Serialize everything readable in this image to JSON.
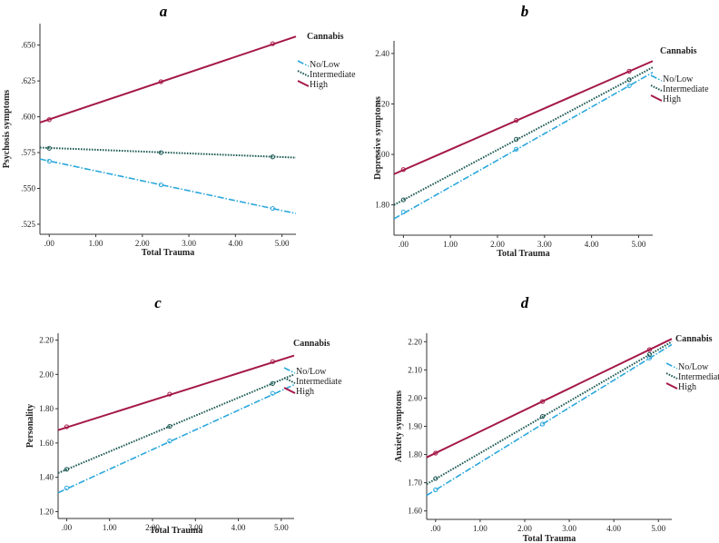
{
  "colors": {
    "nolow": "#2aa7dc",
    "intermediate": "#1d5a54",
    "high": "#a41848",
    "axis": "#333333"
  },
  "chart_data": [
    {
      "type": "line",
      "panel": "a",
      "xlabel": "Total Trauma",
      "ylabel": "Psychosis symptoms",
      "xticks": [
        ".00",
        "1.00",
        "2.00",
        "3.00",
        "4.00",
        "5.00"
      ],
      "xtick_values": [
        0,
        1,
        2,
        3,
        4,
        5
      ],
      "yticks": [
        ".525",
        ".550",
        ".575",
        ".600",
        ".625",
        ".650"
      ],
      "ytick_values": [
        0.525,
        0.55,
        0.575,
        0.6,
        0.625,
        0.65
      ],
      "xlim": [
        -0.2,
        5.3
      ],
      "ylim": [
        0.518,
        0.665
      ],
      "legend_title": "Cannabis",
      "legend_position": "right",
      "series": [
        {
          "name": "No/Low",
          "style": "nolow",
          "x": [
            -0.2,
            5.3
          ],
          "y": [
            0.5705,
            0.5325
          ],
          "markers_x": [
            0,
            2.4,
            4.8
          ],
          "markers_y": [
            0.569,
            0.5525,
            0.536
          ]
        },
        {
          "name": "Intermediate",
          "style": "intermediate",
          "x": [
            -0.2,
            5.3
          ],
          "y": [
            0.5785,
            0.5715
          ],
          "markers_x": [
            0,
            2.4,
            4.8
          ],
          "markers_y": [
            0.578,
            0.575,
            0.572
          ]
        },
        {
          "name": "High",
          "style": "high",
          "x": [
            -0.2,
            5.3
          ],
          "y": [
            0.596,
            0.656
          ],
          "markers_x": [
            0,
            2.4,
            4.8
          ],
          "markers_y": [
            0.598,
            0.6245,
            0.651
          ]
        }
      ]
    },
    {
      "type": "line",
      "panel": "b",
      "xlabel": "Total Trauma",
      "ylabel": "Depressive symptoms",
      "xticks": [
        ".00",
        "1.00",
        "2.00",
        "3.00",
        "4.00",
        "5.00"
      ],
      "xtick_values": [
        0,
        1,
        2,
        3,
        4,
        5
      ],
      "yticks": [
        "1.80",
        "2.00",
        "2.20",
        "2.40"
      ],
      "ytick_values": [
        1.8,
        2.0,
        2.2,
        2.4
      ],
      "xlim": [
        -0.2,
        5.3
      ],
      "ylim": [
        1.68,
        2.45
      ],
      "legend_title": "Cannabis",
      "legend_position": "right",
      "series": [
        {
          "name": "No/Low",
          "style": "nolow",
          "x": [
            -0.2,
            5.3
          ],
          "y": [
            1.745,
            2.325
          ],
          "markers_x": [
            0,
            2.4,
            4.8
          ],
          "markers_y": [
            1.772,
            2.021,
            2.272
          ]
        },
        {
          "name": "Intermediate",
          "style": "intermediate",
          "x": [
            -0.2,
            5.3
          ],
          "y": [
            1.8,
            2.345
          ],
          "markers_x": [
            0,
            2.4,
            4.8
          ],
          "markers_y": [
            1.82,
            2.06,
            2.296
          ]
        },
        {
          "name": "High",
          "style": "high",
          "x": [
            -0.2,
            5.3
          ],
          "y": [
            1.922,
            2.37
          ],
          "markers_x": [
            0,
            2.4,
            4.8
          ],
          "markers_y": [
            1.94,
            2.135,
            2.33
          ]
        }
      ]
    },
    {
      "type": "line",
      "panel": "c",
      "xlabel": "Total Trauma",
      "ylabel": "Personality",
      "xticks": [
        ".00",
        "1.00",
        "2.00",
        "3.00",
        "4.00",
        "5.00"
      ],
      "xtick_values": [
        0,
        1,
        2,
        3,
        4,
        5
      ],
      "yticks": [
        "1.20",
        "1.40",
        "1.60",
        "1.80",
        "2.00",
        "2.20"
      ],
      "ytick_values": [
        1.2,
        1.4,
        1.6,
        1.8,
        2.0,
        2.2
      ],
      "xlim": [
        -0.2,
        5.3
      ],
      "ylim": [
        1.16,
        2.24
      ],
      "legend_title": "Cannabis",
      "legend_position": "right",
      "series": [
        {
          "name": "No/Low",
          "style": "nolow",
          "x": [
            -0.2,
            5.3
          ],
          "y": [
            1.31,
            1.94
          ],
          "markers_x": [
            0,
            2.4,
            4.8
          ],
          "markers_y": [
            1.338,
            1.612,
            1.89
          ]
        },
        {
          "name": "Intermediate",
          "style": "intermediate",
          "x": [
            -0.2,
            5.3
          ],
          "y": [
            1.425,
            2.0
          ],
          "markers_x": [
            0,
            2.4,
            4.8
          ],
          "markers_y": [
            1.447,
            1.697,
            1.947
          ]
        },
        {
          "name": "High",
          "style": "high",
          "x": [
            -0.2,
            5.3
          ],
          "y": [
            1.675,
            2.11
          ],
          "markers_x": [
            0,
            2.4,
            4.8
          ],
          "markers_y": [
            1.695,
            1.885,
            2.075
          ]
        }
      ]
    },
    {
      "type": "line",
      "panel": "d",
      "xlabel": "Total Trauma",
      "ylabel": "Anxiety symptoms",
      "xticks": [
        ".00",
        "1.00",
        "2.00",
        "3.00",
        "4.00",
        "5.00"
      ],
      "xtick_values": [
        0,
        1,
        2,
        3,
        4,
        5
      ],
      "yticks": [
        "1.60",
        "1.70",
        "1.80",
        "1.90",
        "2.00",
        "2.10",
        "2.20"
      ],
      "ytick_values": [
        1.6,
        1.7,
        1.8,
        1.9,
        2.0,
        2.1,
        2.2
      ],
      "xlim": [
        -0.2,
        5.3
      ],
      "ylim": [
        1.57,
        2.23
      ],
      "legend_title": "Cannabis",
      "legend_position": "right",
      "series": [
        {
          "name": "No/Low",
          "style": "nolow",
          "x": [
            -0.2,
            5.3
          ],
          "y": [
            1.655,
            2.19
          ],
          "markers_x": [
            0,
            2.4,
            4.8
          ],
          "markers_y": [
            1.675,
            1.908,
            2.142
          ]
        },
        {
          "name": "Intermediate",
          "style": "intermediate",
          "x": [
            -0.2,
            5.3
          ],
          "y": [
            1.695,
            2.2
          ],
          "markers_x": [
            0,
            2.4,
            4.8
          ],
          "markers_y": [
            1.715,
            1.935,
            2.155
          ]
        },
        {
          "name": "High",
          "style": "high",
          "x": [
            -0.2,
            5.3
          ],
          "y": [
            1.79,
            2.21
          ],
          "markers_x": [
            0,
            2.4,
            4.8
          ],
          "markers_y": [
            1.805,
            1.988,
            2.172
          ]
        }
      ]
    }
  ]
}
